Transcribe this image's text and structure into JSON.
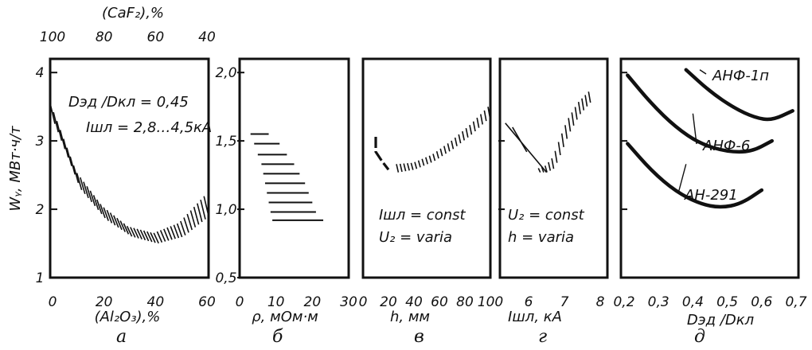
{
  "charts": {
    "a": {
      "type": "area",
      "panel_letter": "а",
      "xlabel": "(Al₂O₃),%",
      "top_axis_label": "(CaF₂),%",
      "ylabel": "Wᵧ, МВт·ч/т",
      "xticks": [
        "0",
        "20",
        "40",
        "60"
      ],
      "top_ticks": [
        "100",
        "80",
        "60",
        "40"
      ],
      "yticks": [
        "1",
        "2",
        "3",
        "4"
      ],
      "annotation1": "Dэд /Dкл = 0,45",
      "annotation2": "Iшл = 2,8…4,5кА",
      "xlim": [
        0,
        60
      ],
      "ylim": [
        1,
        4.2
      ],
      "upper": [
        [
          0,
          3.55
        ],
        [
          10,
          2.55
        ],
        [
          20,
          2.05
        ],
        [
          30,
          1.75
        ],
        [
          40,
          1.65
        ],
        [
          50,
          1.8
        ],
        [
          60,
          2.2
        ]
      ],
      "lower": [
        [
          0,
          3.25
        ],
        [
          10,
          2.3
        ],
        [
          20,
          1.85
        ],
        [
          30,
          1.6
        ],
        [
          40,
          1.5
        ],
        [
          50,
          1.6
        ],
        [
          60,
          1.9
        ]
      ]
    },
    "b": {
      "type": "area",
      "panel_letter": "б",
      "xlabel": "ρ, мОм·м",
      "xticks": [
        "0",
        "10",
        "20",
        "30"
      ],
      "yticks": [
        "0,5",
        "1,0",
        "1,5",
        "2,0"
      ],
      "xlim": [
        0,
        30
      ],
      "ylim": [
        0.5,
        2.1
      ],
      "rows": [
        [
          3,
          8,
          1.55
        ],
        [
          4,
          11,
          1.48
        ],
        [
          5,
          13,
          1.4
        ],
        [
          6,
          15,
          1.33
        ],
        [
          6.5,
          16.5,
          1.26
        ],
        [
          7,
          18,
          1.19
        ],
        [
          7.5,
          19,
          1.12
        ],
        [
          8,
          20,
          1.05
        ],
        [
          8.5,
          21,
          0.98
        ],
        [
          9,
          23,
          0.92
        ]
      ]
    },
    "v": {
      "type": "area",
      "panel_letter": "в",
      "xlabel": "h, мм",
      "xticks": [
        "0",
        "20",
        "40",
        "60",
        "80",
        "100"
      ],
      "annotation1": "Iшл = const",
      "annotation2": "U₂ = varia",
      "xlim": [
        0,
        100
      ],
      "ylim": [
        0.5,
        2.1
      ],
      "dashed": [
        [
          10,
          1.53
        ],
        [
          10,
          1.42
        ],
        [
          15,
          1.35
        ],
        [
          20,
          1.29
        ]
      ],
      "upper": [
        [
          27,
          1.33
        ],
        [
          40,
          1.34
        ],
        [
          55,
          1.4
        ],
        [
          70,
          1.5
        ],
        [
          85,
          1.62
        ],
        [
          100,
          1.76
        ]
      ],
      "lower": [
        [
          27,
          1.27
        ],
        [
          40,
          1.29
        ],
        [
          55,
          1.35
        ],
        [
          70,
          1.44
        ],
        [
          85,
          1.55
        ],
        [
          100,
          1.68
        ]
      ]
    },
    "g": {
      "type": "area",
      "panel_letter": "г",
      "xlabel": "Iшл, кА",
      "xticks": [
        "6",
        "7",
        "8"
      ],
      "annotation1": "U₂ = const",
      "annotation2": "h = varia",
      "xlim": [
        5.2,
        8.2
      ],
      "ylim": [
        0.5,
        2.1
      ],
      "lines": [
        [
          [
            5.35,
            1.63
          ],
          [
            6.5,
            1.27
          ]
        ],
        [
          [
            5.55,
            1.6
          ],
          [
            5.95,
            1.42
          ]
        ]
      ],
      "upper": [
        [
          6.3,
          1.3
        ],
        [
          6.5,
          1.32
        ],
        [
          6.7,
          1.38
        ],
        [
          6.9,
          1.52
        ],
        [
          7.1,
          1.65
        ],
        [
          7.4,
          1.78
        ],
        [
          7.7,
          1.86
        ]
      ],
      "lower": [
        [
          6.3,
          1.27
        ],
        [
          6.5,
          1.27
        ],
        [
          6.7,
          1.3
        ],
        [
          6.9,
          1.42
        ],
        [
          7.1,
          1.55
        ],
        [
          7.4,
          1.69
        ],
        [
          7.7,
          1.78
        ]
      ]
    },
    "d": {
      "type": "line",
      "panel_letter": "д",
      "xlabel": "Dэд /Dкл",
      "xticks": [
        "0,2",
        "0,3",
        "0,4",
        "0,5",
        "0,6",
        "0,7"
      ],
      "xlim": [
        0.2,
        0.7
      ],
      "ylim": [
        0.5,
        2.1
      ],
      "series": [
        {
          "name": "АНФ-1п",
          "points": [
            [
              0.38,
              2.02
            ],
            [
              0.45,
              1.86
            ],
            [
              0.52,
              1.74
            ],
            [
              0.58,
              1.67
            ],
            [
              0.63,
              1.65
            ],
            [
              0.69,
              1.72
            ]
          ]
        },
        {
          "name": "АНФ-6",
          "points": [
            [
              0.21,
              1.98
            ],
            [
              0.28,
              1.77
            ],
            [
              0.35,
              1.6
            ],
            [
              0.42,
              1.48
            ],
            [
              0.5,
              1.42
            ],
            [
              0.57,
              1.42
            ],
            [
              0.63,
              1.5
            ]
          ]
        },
        {
          "name": "АН-291",
          "points": [
            [
              0.21,
              1.48
            ],
            [
              0.28,
              1.28
            ],
            [
              0.35,
              1.13
            ],
            [
              0.42,
              1.04
            ],
            [
              0.48,
              1.01
            ],
            [
              0.54,
              1.04
            ],
            [
              0.6,
              1.14
            ]
          ]
        }
      ]
    }
  }
}
